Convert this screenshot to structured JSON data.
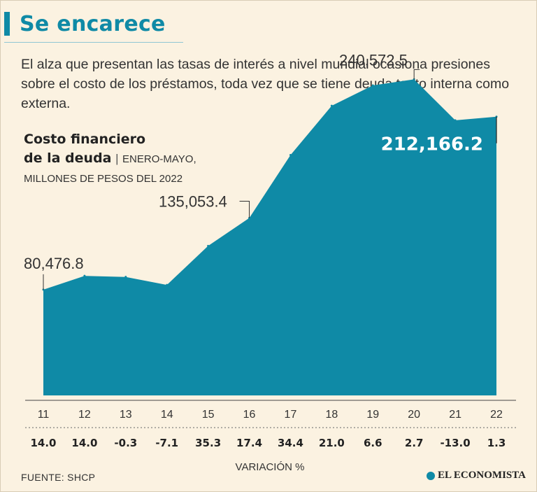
{
  "header": {
    "title": "Se encarece",
    "intro": "El alza que presentan las tasas de interés a nivel mundial ocasiona presiones sobre el costo de los préstamos, toda vez que se tiene deuda tanto interna como externa."
  },
  "chart_title": {
    "line1": "Costo financiero",
    "line2": "de la deuda",
    "sub1": "ENERO-MAYO,",
    "sub2": "MILLONES DE PESOS DEL 2022"
  },
  "chart_data": {
    "type": "area",
    "title": "Costo financiero de la deuda",
    "subtitle": "ENERO-MAYO, MILLONES DE PESOS DEL 2022",
    "x": [
      "11",
      "12",
      "13",
      "14",
      "15",
      "16",
      "17",
      "18",
      "19",
      "20",
      "21",
      "22"
    ],
    "values": [
      80476.8,
      91000,
      90200,
      84100,
      113800,
      135053.4,
      183000,
      220500,
      236000,
      240572.5,
      209400,
      212166.2
    ],
    "ylim": [
      0,
      285000
    ],
    "labeled_points": [
      {
        "index": 0,
        "label": "80,476.8"
      },
      {
        "index": 5,
        "label": "135,053.4"
      },
      {
        "index": 9,
        "label": "240,572.5"
      },
      {
        "index": 11,
        "label": "212,166.2"
      }
    ],
    "variation_label": "VARIACIÓN %",
    "variation": [
      "14.0",
      "14.0",
      "-0.3",
      "-7.1",
      "35.3",
      "17.4",
      "34.4",
      "21.0",
      "6.6",
      "2.7",
      "-13.0",
      "1.3"
    ],
    "fill_color": "#0f8aa6"
  },
  "footer": {
    "source": "FUENTE: SHCP",
    "brand": "EL ECONOMISTA"
  }
}
